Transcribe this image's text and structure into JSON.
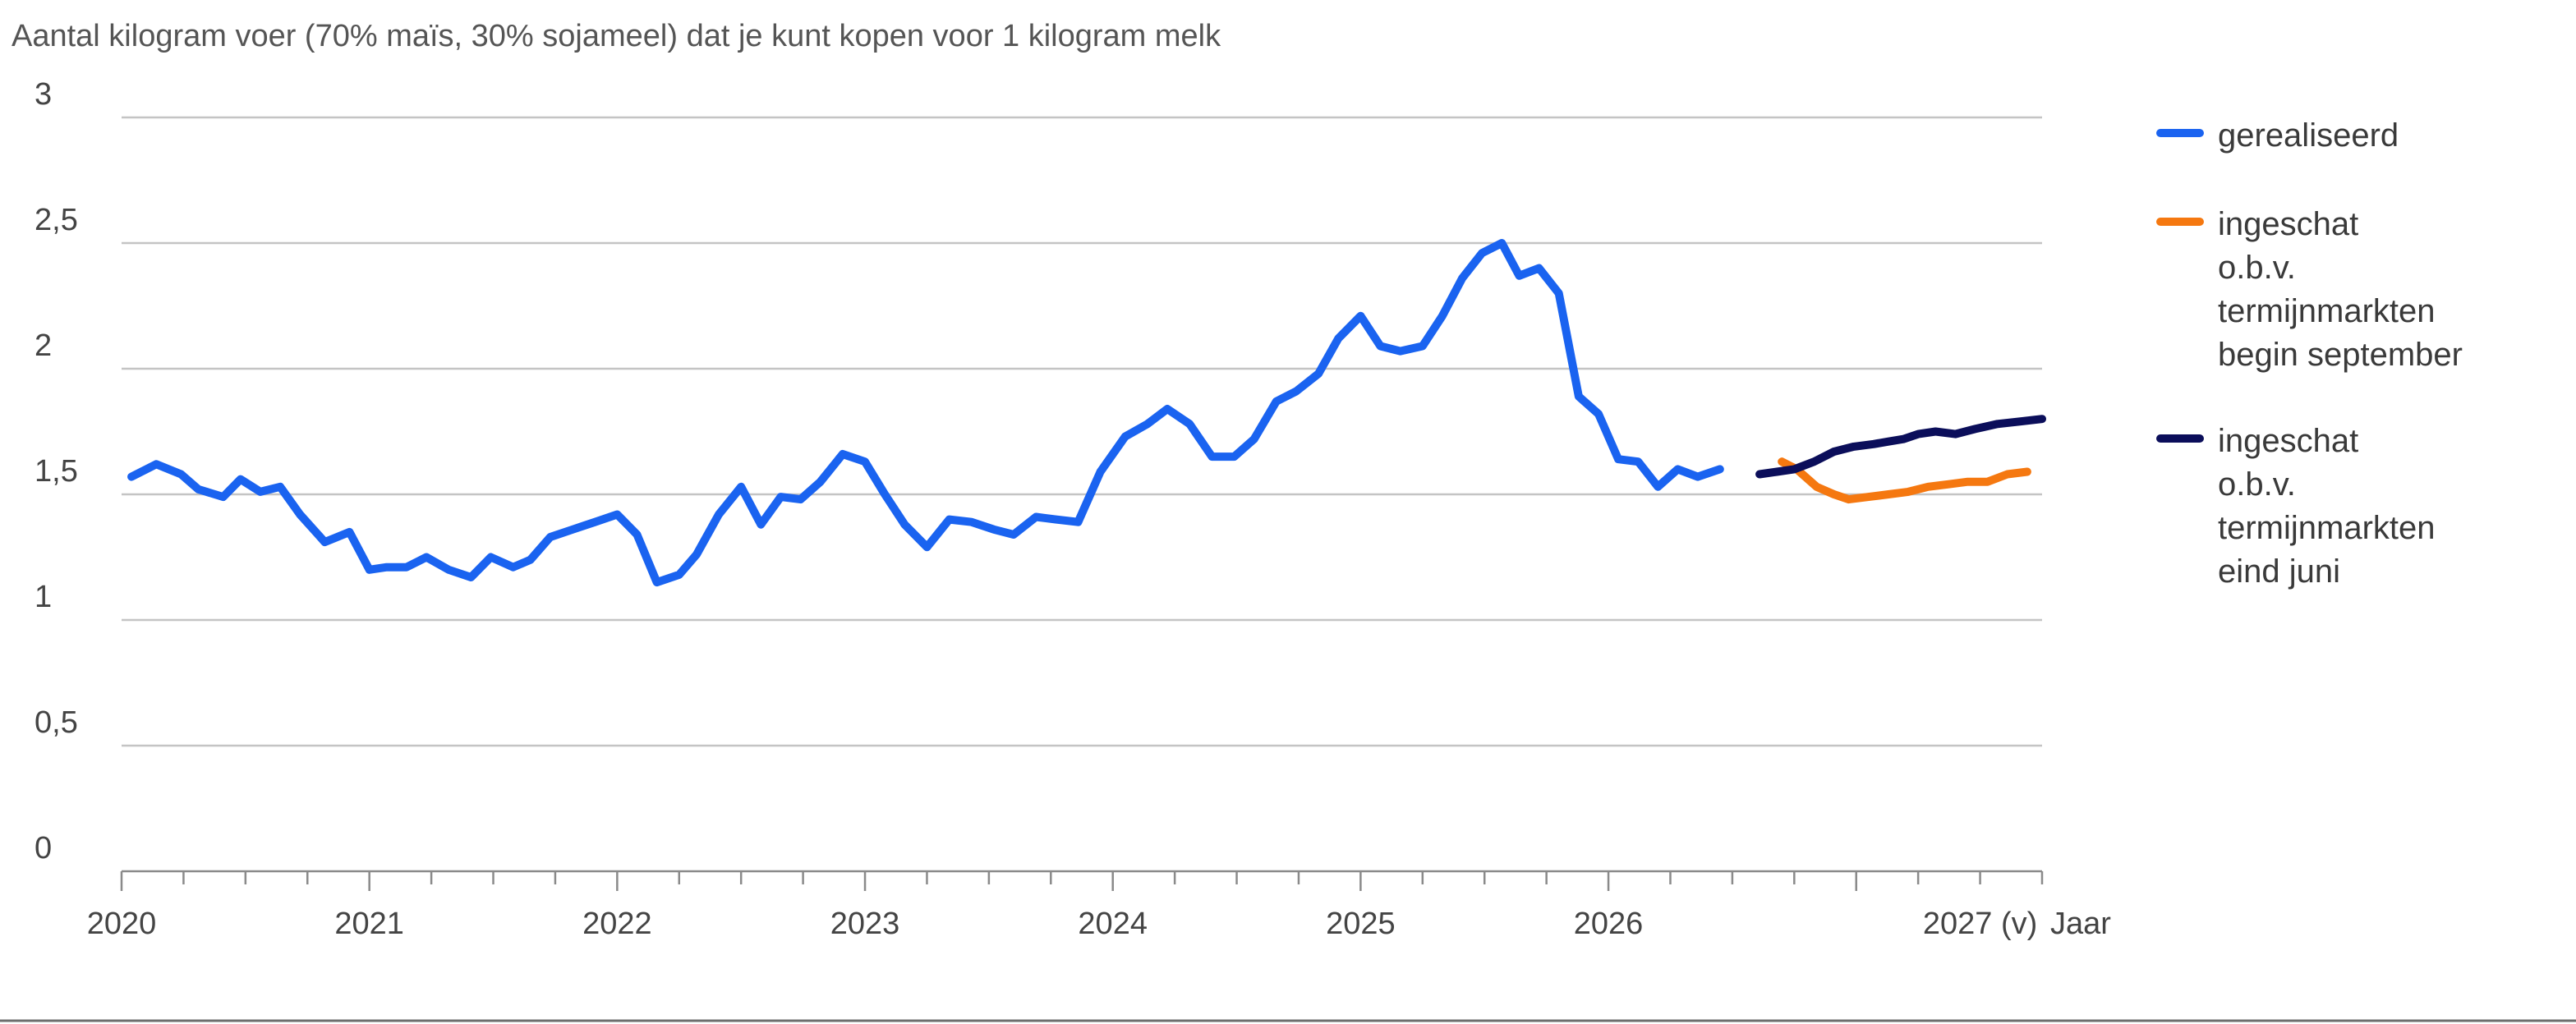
{
  "chart_data": {
    "type": "line",
    "title": "Aantal kilogram voer (70% maïs, 30% sojameel) dat je kunt kopen voor 1 kilogram melk",
    "xlabel": "Jaar",
    "ylabel": "",
    "x_tick_labels": [
      "2020",
      "2021",
      "2022",
      "2023",
      "2024",
      "2025",
      "2026",
      "2027 (v)"
    ],
    "y_tick_labels": [
      "0",
      "0,5",
      "1",
      "1,5",
      "2",
      "2,5",
      "3"
    ],
    "xlim": [
      2020,
      2027.75
    ],
    "ylim": [
      0,
      3
    ],
    "grid": true,
    "legend_position": "right",
    "series": [
      {
        "name": "gerealiseerd",
        "name_lines": [
          "gerealiseerd"
        ],
        "color": "#1a63f0",
        "x": [
          2020.04,
          2020.14,
          2020.24,
          2020.31,
          2020.41,
          2020.48,
          2020.56,
          2020.64,
          2020.72,
          2020.82,
          2020.92,
          2021.0,
          2021.07,
          2021.15,
          2021.23,
          2021.32,
          2021.41,
          2021.49,
          2021.58,
          2021.65,
          2021.73,
          2021.82,
          2021.91,
          2022.0,
          2022.08,
          2022.16,
          2022.25,
          2022.32,
          2022.41,
          2022.5,
          2022.58,
          2022.66,
          2022.74,
          2022.82,
          2022.91,
          2023.0,
          2023.08,
          2023.16,
          2023.25,
          2023.34,
          2023.43,
          2023.52,
          2023.6,
          2023.69,
          2023.77,
          2023.86,
          2023.95,
          2024.05,
          2024.14,
          2024.22,
          2024.31,
          2024.4,
          2024.49,
          2024.57,
          2024.66,
          2024.74,
          2024.83,
          2024.91,
          2025.0,
          2025.08,
          2025.16,
          2025.25,
          2025.33,
          2025.41,
          2025.49,
          2025.57,
          2025.64,
          2025.72,
          2025.8,
          2025.88,
          2025.96,
          2026.04,
          2026.12,
          2026.2,
          2026.28,
          2026.36,
          2026.45,
          2026.53,
          2026.61
        ],
        "values": [
          1.57,
          1.62,
          1.58,
          1.52,
          1.49,
          1.56,
          1.51,
          1.53,
          1.42,
          1.31,
          1.35,
          1.2,
          1.21,
          1.21,
          1.25,
          1.2,
          1.17,
          1.25,
          1.21,
          1.24,
          1.33,
          1.36,
          1.39,
          1.42,
          1.34,
          1.15,
          1.18,
          1.26,
          1.42,
          1.53,
          1.38,
          1.49,
          1.48,
          1.55,
          1.66,
          1.63,
          1.5,
          1.38,
          1.29,
          1.4,
          1.39,
          1.36,
          1.34,
          1.41,
          1.4,
          1.39,
          1.59,
          1.73,
          1.78,
          1.84,
          1.78,
          1.65,
          1.65,
          1.72,
          1.87,
          1.91,
          1.98,
          2.12,
          2.21,
          2.09,
          2.07,
          2.09,
          2.21,
          2.36,
          2.46,
          2.5,
          2.37,
          2.4,
          2.3,
          1.89,
          1.82,
          1.64,
          1.63,
          1.53,
          1.6,
          1.57,
          1.6,
          null,
          null
        ]
      },
      {
        "name": "ingeschat o.b.v. termijnmarkten begin september",
        "name_lines": [
          "ingeschat",
          "o.b.v.",
          "termijnmarkten",
          "begin september"
        ],
        "color": "#f57810",
        "x": [
          2026.7,
          2026.76,
          2026.84,
          2026.91,
          2026.97,
          2027.05,
          2027.13,
          2027.21,
          2027.29,
          2027.37,
          2027.45,
          2027.53,
          2027.61,
          2027.69
        ],
        "values": [
          1.63,
          1.6,
          1.53,
          1.5,
          1.48,
          1.49,
          1.5,
          1.51,
          1.53,
          1.54,
          1.55,
          1.55,
          1.58,
          1.59
        ]
      },
      {
        "name": "ingeschat o.b.v. termijnmarkten eind juni",
        "name_lines": [
          "ingeschat",
          "o.b.v.",
          "termijnmarkten",
          "eind juni"
        ],
        "color": "#0b0e5a",
        "x": [
          2026.61,
          2026.68,
          2026.75,
          2026.83,
          2026.91,
          2026.99,
          2027.07,
          2027.13,
          2027.19,
          2027.25,
          2027.32,
          2027.4,
          2027.48,
          2027.57,
          2027.66,
          2027.75
        ],
        "values": [
          1.58,
          1.59,
          1.6,
          1.63,
          1.67,
          1.69,
          1.7,
          1.71,
          1.72,
          1.74,
          1.75,
          1.74,
          1.76,
          1.78,
          1.79,
          1.8
        ]
      }
    ]
  }
}
